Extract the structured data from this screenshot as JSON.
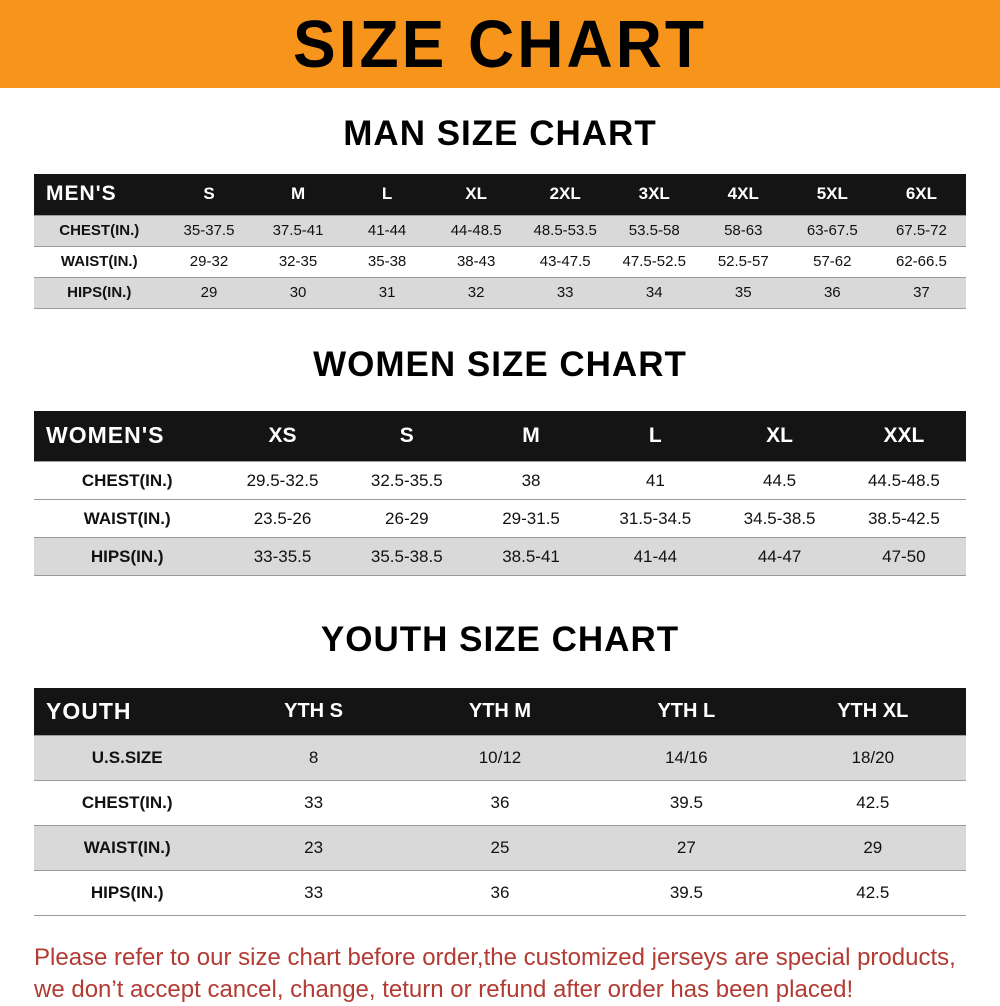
{
  "banner": {
    "title": "SIZE CHART"
  },
  "colors": {
    "banner_bg": "#F7941C",
    "header_bg": "#141414",
    "shaded_row": "#D9D9D9",
    "note_text": "#B23B33"
  },
  "sections": [
    {
      "heading": "MAN SIZE CHART",
      "table": {
        "label": "MEN'S",
        "columns": [
          "S",
          "M",
          "L",
          "XL",
          "2XL",
          "3XL",
          "4XL",
          "5XL",
          "6XL"
        ],
        "rows": [
          {
            "label": "CHEST(IN.)",
            "shaded": true,
            "values": [
              "35-37.5",
              "37.5-41",
              "41-44",
              "44-48.5",
              "48.5-53.5",
              "53.5-58",
              "58-63",
              "63-67.5",
              "67.5-72"
            ]
          },
          {
            "label": "WAIST(IN.)",
            "shaded": false,
            "values": [
              "29-32",
              "32-35",
              "35-38",
              "38-43",
              "43-47.5",
              "47.5-52.5",
              "52.5-57",
              "57-62",
              "62-66.5"
            ]
          },
          {
            "label": "HIPS(IN.)",
            "shaded": true,
            "values": [
              "29",
              "30",
              "31",
              "32",
              "33",
              "34",
              "35",
              "36",
              "37"
            ]
          }
        ]
      }
    },
    {
      "heading": "WOMEN SIZE CHART",
      "table": {
        "label": "WOMEN'S",
        "columns": [
          "XS",
          "S",
          "M",
          "L",
          "XL",
          "XXL"
        ],
        "rows": [
          {
            "label": "CHEST(IN.)",
            "shaded": false,
            "values": [
              "29.5-32.5",
              "32.5-35.5",
              "38",
              "41",
              "44.5",
              "44.5-48.5"
            ]
          },
          {
            "label": "WAIST(IN.)",
            "shaded": false,
            "values": [
              "23.5-26",
              "26-29",
              "29-31.5",
              "31.5-34.5",
              "34.5-38.5",
              "38.5-42.5"
            ]
          },
          {
            "label": "HIPS(IN.)",
            "shaded": true,
            "values": [
              "33-35.5",
              "35.5-38.5",
              "38.5-41",
              "41-44",
              "44-47",
              "47-50"
            ]
          }
        ]
      }
    },
    {
      "heading": "YOUTH SIZE CHART",
      "table": {
        "label": "YOUTH",
        "columns": [
          "YTH S",
          "YTH M",
          "YTH L",
          "YTH XL"
        ],
        "rows": [
          {
            "label": "U.S.SIZE",
            "shaded": true,
            "values": [
              "8",
              "10/12",
              "14/16",
              "18/20"
            ]
          },
          {
            "label": "CHEST(IN.)",
            "shaded": false,
            "values": [
              "33",
              "36",
              "39.5",
              "42.5"
            ]
          },
          {
            "label": "WAIST(IN.)",
            "shaded": true,
            "values": [
              "23",
              "25",
              "27",
              "29"
            ]
          },
          {
            "label": "HIPS(IN.)",
            "shaded": false,
            "values": [
              "33",
              "36",
              "39.5",
              "42.5"
            ]
          }
        ]
      }
    }
  ],
  "note": {
    "line1": "Please refer to our size chart before order,the customized jerseys are special products,",
    "line2": "we don’t accept cancel, change, teturn or refund after order has been placed!"
  }
}
